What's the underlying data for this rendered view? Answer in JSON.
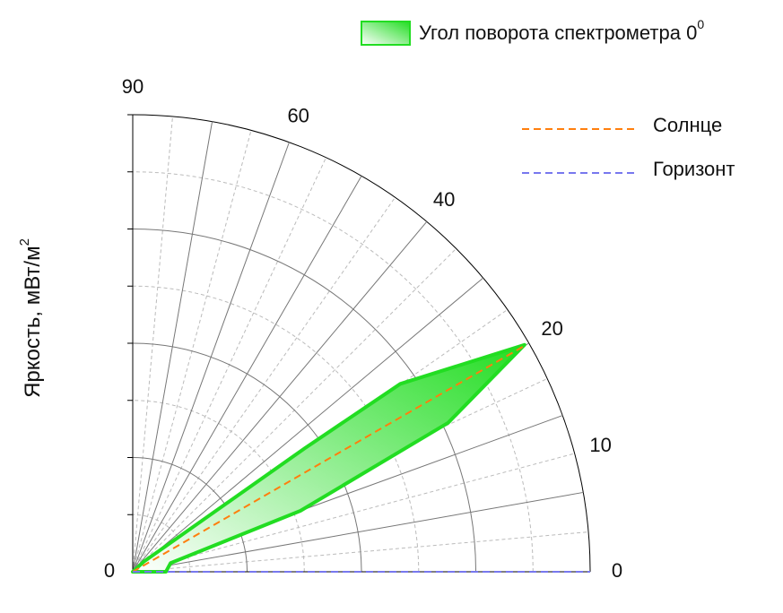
{
  "chart_data": {
    "type": "polar",
    "ylabel": "Яркость, мВт/м",
    "ylabel_superscript": "2",
    "rlim": [
      0,
      4
    ],
    "rgrid": [
      1,
      2,
      3,
      4
    ],
    "rgrid_minor": [
      0.5,
      1.5,
      2.5,
      3.5
    ],
    "thetalim": [
      0,
      90
    ],
    "thetaticks": [
      0,
      {
        "value": 15,
        "label": "10"
      },
      {
        "value": 30,
        "label": "20"
      },
      {
        "value": 50,
        "label": "40"
      },
      {
        "value": 70,
        "label": "60"
      },
      90
    ],
    "thetagrid": [
      10,
      20,
      30,
      40,
      50,
      60,
      70,
      80
    ],
    "thetagrid_minor": [
      5,
      15,
      25,
      35,
      45,
      55,
      65,
      75,
      85
    ],
    "series": [
      {
        "name": "Угол поворота спектрометра 0",
        "name_superscript": "0",
        "kind": "area",
        "color": "#22dd22",
        "theta": [
          0,
          42.5,
          35.7,
          35.1,
          30.1,
          25.3,
          20,
          13,
          0
        ],
        "r": [
          0,
          0.13,
          1.85,
          2.86,
          3.96,
          3.05,
          1.56,
          0.34,
          0.29
        ]
      },
      {
        "name": "Солнце",
        "kind": "line",
        "color": "#ff7f0e",
        "theta": [
          30,
          30
        ],
        "r": [
          0,
          3.96
        ]
      },
      {
        "name": "Горизонт",
        "kind": "line",
        "color": "#7777ee",
        "theta": [
          0,
          0
        ],
        "r": [
          0,
          4
        ]
      }
    ]
  }
}
